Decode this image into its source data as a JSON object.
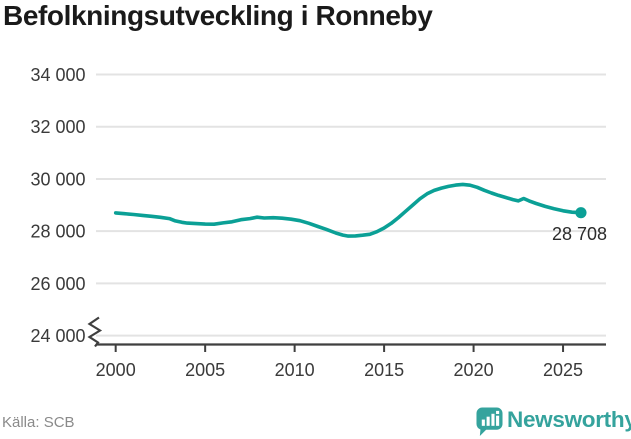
{
  "title": "Befolkningsutveckling i Ronneby",
  "source_label": "Källa: SCB",
  "brand": {
    "name": "Newsworthy"
  },
  "colors": {
    "accent_line": "#0ba096",
    "brand_teal": "#35a39d",
    "grid": "#e3e3e3",
    "axis": "#3f3f3f",
    "tick_text": "#3a3a3a",
    "annotation_text": "#2b2b2b",
    "muted_text": "#8a8a8a",
    "title_text": "#1a1a1a"
  },
  "chart_data": {
    "type": "line",
    "title": "Befolkningsutveckling i Ronneby",
    "xlabel": "",
    "ylabel": "",
    "xlim": [
      1998.9,
      2027.4
    ],
    "ylim": [
      23660,
      34000
    ],
    "grid": "horizontal-only",
    "axis_break_at_bottom": true,
    "legend": "none",
    "x_ticks": [
      {
        "v": 2000,
        "label": "2000"
      },
      {
        "v": 2005,
        "label": "2005"
      },
      {
        "v": 2010,
        "label": "2010"
      },
      {
        "v": 2015,
        "label": "2015"
      },
      {
        "v": 2020,
        "label": "2020"
      },
      {
        "v": 2025,
        "label": "2025"
      }
    ],
    "y_ticks": [
      {
        "v": 24000,
        "label": "24 000"
      },
      {
        "v": 26000,
        "label": "26 000"
      },
      {
        "v": 28000,
        "label": "28 000"
      },
      {
        "v": 30000,
        "label": "30 000"
      },
      {
        "v": 32000,
        "label": "32 000"
      },
      {
        "v": 34000,
        "label": "34 000"
      }
    ],
    "end_label": "28 708",
    "end_point": {
      "x": 2026.0,
      "y": 28708
    },
    "series": [
      {
        "name": "Befolkning",
        "points": [
          [
            2000.0,
            28700
          ],
          [
            2000.5,
            28670
          ],
          [
            2001.0,
            28640
          ],
          [
            2001.5,
            28605
          ],
          [
            2002.0,
            28570
          ],
          [
            2002.5,
            28530
          ],
          [
            2003.0,
            28480
          ],
          [
            2003.3,
            28400
          ],
          [
            2003.7,
            28340
          ],
          [
            2004.0,
            28310
          ],
          [
            2004.5,
            28290
          ],
          [
            2005.0,
            28272
          ],
          [
            2005.5,
            28268
          ],
          [
            2006.0,
            28315
          ],
          [
            2006.5,
            28360
          ],
          [
            2007.0,
            28440
          ],
          [
            2007.5,
            28480
          ],
          [
            2007.9,
            28535
          ],
          [
            2008.3,
            28505
          ],
          [
            2008.8,
            28515
          ],
          [
            2009.3,
            28498
          ],
          [
            2009.8,
            28460
          ],
          [
            2010.3,
            28400
          ],
          [
            2010.8,
            28300
          ],
          [
            2011.3,
            28180
          ],
          [
            2011.8,
            28060
          ],
          [
            2012.3,
            27930
          ],
          [
            2012.7,
            27850
          ],
          [
            2013.0,
            27810
          ],
          [
            2013.4,
            27818
          ],
          [
            2013.8,
            27845
          ],
          [
            2014.2,
            27880
          ],
          [
            2014.6,
            27980
          ],
          [
            2015.0,
            28120
          ],
          [
            2015.4,
            28300
          ],
          [
            2015.8,
            28520
          ],
          [
            2016.2,
            28760
          ],
          [
            2016.6,
            29000
          ],
          [
            2017.0,
            29240
          ],
          [
            2017.4,
            29430
          ],
          [
            2017.8,
            29560
          ],
          [
            2018.2,
            29650
          ],
          [
            2018.6,
            29715
          ],
          [
            2019.0,
            29765
          ],
          [
            2019.4,
            29790
          ],
          [
            2019.8,
            29760
          ],
          [
            2020.2,
            29680
          ],
          [
            2020.6,
            29565
          ],
          [
            2021.0,
            29460
          ],
          [
            2021.4,
            29370
          ],
          [
            2021.8,
            29290
          ],
          [
            2022.2,
            29210
          ],
          [
            2022.5,
            29160
          ],
          [
            2022.8,
            29250
          ],
          [
            2023.1,
            29160
          ],
          [
            2023.5,
            29060
          ],
          [
            2024.0,
            28950
          ],
          [
            2024.5,
            28860
          ],
          [
            2025.0,
            28780
          ],
          [
            2025.5,
            28725
          ],
          [
            2026.0,
            28708
          ]
        ]
      }
    ]
  }
}
